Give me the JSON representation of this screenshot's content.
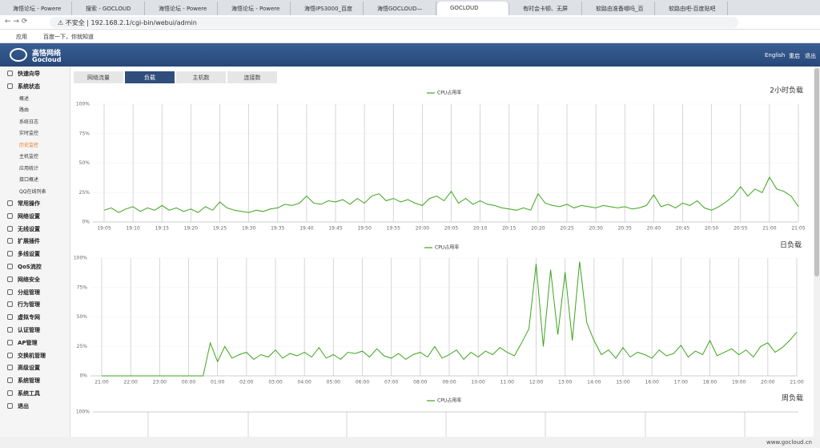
{
  "browser": {
    "tabs": [
      "海悟论坛 - Powere",
      "搜索 - GOCLOUD",
      "海悟论坛 - Powere",
      "海悟论坛 - Powere",
      "海悟IPS3000_百度",
      "海悟GOCLOUD—",
      "GOCLOUD",
      "有时会卡顿、无屏",
      "软路由准备哪吗_百",
      "软路由吧-百度贴吧"
    ],
    "active_tab": 6,
    "security": "不安全",
    "url": "192.168.2.1/cgi-bin/webui/admin",
    "bookmarks": [
      "应用",
      "百度一下，你就知道"
    ]
  },
  "header": {
    "logo": "高恪网络",
    "logo_en": "Gocloud",
    "links": [
      "English",
      "重启",
      "退出"
    ]
  },
  "sidebar": {
    "menu": [
      "快速向导",
      "系统状态",
      "常用操作",
      "网络设置",
      "无线设置",
      "扩展插件",
      "多线设置",
      "QoS流控",
      "网络安全",
      "分组管理",
      "行为管理",
      "虚拟专网",
      "认证管理",
      "AP管理",
      "交换机管理",
      "高级设置",
      "系统管理",
      "系统工具",
      "退出"
    ],
    "open": 1,
    "submenu": [
      "概述",
      "路由",
      "系统日志",
      "实时监控",
      "历史监控",
      "主机监控",
      "应用统计",
      "接口概述",
      "QQ在线列表"
    ],
    "active_sub": 4
  },
  "tabs": {
    "items": [
      "网络流量",
      "负载",
      "主机数",
      "连接数"
    ],
    "active": 1
  },
  "chart_data": [
    {
      "type": "line",
      "title": "2小时负载",
      "legend": "CPU占用率",
      "color": "#3ca51c",
      "grid": true,
      "ylim": [
        0,
        100
      ],
      "yticks": [
        {
          "value": 0,
          "label": "0%"
        },
        {
          "value": 25,
          "label": "25%"
        },
        {
          "value": 50,
          "label": "50%"
        },
        {
          "value": 75,
          "label": "75%"
        },
        {
          "value": 100,
          "label": "100%"
        }
      ],
      "categories": [
        "19:05",
        null,
        null,
        null,
        "19:10",
        null,
        null,
        null,
        "19:15",
        null,
        null,
        null,
        "19:20",
        null,
        null,
        null,
        "19:25",
        null,
        null,
        null,
        "19:30",
        null,
        null,
        null,
        "19:35",
        null,
        null,
        null,
        "19:40",
        null,
        null,
        null,
        "19:45",
        null,
        null,
        null,
        "19:50",
        null,
        null,
        null,
        "19:55",
        null,
        null,
        null,
        "20:00",
        null,
        null,
        null,
        "20:05",
        null,
        null,
        null,
        "20:10",
        null,
        null,
        null,
        "20:15",
        null,
        null,
        null,
        "20:20",
        null,
        null,
        null,
        "20:25",
        null,
        null,
        null,
        "20:30",
        null,
        null,
        null,
        "20:35",
        null,
        null,
        null,
        "20:40",
        null,
        null,
        null,
        "20:45",
        null,
        null,
        null,
        "20:50",
        null,
        null,
        null,
        "20:55",
        null,
        null,
        null,
        "21:00",
        null,
        null,
        null,
        "21:05"
      ],
      "series": [
        {
          "name": "CPU占用率",
          "values": [
            10,
            12,
            8,
            11,
            13,
            9,
            12,
            10,
            14,
            10,
            12,
            9,
            11,
            8,
            13,
            10,
            17,
            12,
            10,
            9,
            8,
            10,
            9,
            11,
            12,
            15,
            14,
            16,
            22,
            16,
            15,
            18,
            17,
            19,
            15,
            20,
            16,
            22,
            24,
            18,
            20,
            17,
            19,
            16,
            14,
            20,
            22,
            18,
            26,
            16,
            20,
            15,
            18,
            15,
            14,
            12,
            11,
            10,
            12,
            10,
            24,
            16,
            14,
            13,
            15,
            12,
            14,
            13,
            12,
            14,
            13,
            12,
            13,
            11,
            12,
            14,
            23,
            13,
            15,
            12,
            16,
            14,
            18,
            12,
            10,
            13,
            17,
            22,
            30,
            22,
            28,
            25,
            38,
            28,
            26,
            22,
            13
          ]
        }
      ]
    },
    {
      "type": "line",
      "title": "日负载",
      "legend": "CPU占用率",
      "color": "#3ca51c",
      "grid": true,
      "ylim": [
        0,
        100
      ],
      "yticks": [
        {
          "value": 0,
          "label": "0%"
        },
        {
          "value": 25,
          "label": "25%"
        },
        {
          "value": 50,
          "label": "50%"
        },
        {
          "value": 75,
          "label": "75%"
        },
        {
          "value": 100,
          "label": "100%"
        }
      ],
      "categories": [
        "21:00",
        null,
        null,
        null,
        "22:00",
        null,
        null,
        null,
        "23:00",
        null,
        null,
        null,
        "00:00",
        null,
        null,
        null,
        "01:00",
        null,
        null,
        null,
        "02:00",
        null,
        null,
        null,
        "03:00",
        null,
        null,
        null,
        "04:00",
        null,
        null,
        null,
        "05:00",
        null,
        null,
        null,
        "06:00",
        null,
        null,
        null,
        "07:00",
        null,
        null,
        null,
        "08:00",
        null,
        null,
        null,
        "09:00",
        null,
        null,
        null,
        "10:00",
        null,
        null,
        null,
        "11:00",
        null,
        null,
        null,
        "12:00",
        null,
        null,
        null,
        "13:00",
        null,
        null,
        null,
        "14:00",
        null,
        null,
        null,
        "15:00",
        null,
        null,
        null,
        "16:00",
        null,
        null,
        null,
        "17:00",
        null,
        null,
        null,
        "18:00",
        null,
        null,
        null,
        "19:00",
        null,
        null,
        null,
        "20:00",
        null,
        null,
        null,
        "21:00"
      ],
      "series": [
        {
          "name": "CPU占用率",
          "values": [
            0,
            0,
            0,
            0,
            0,
            0,
            0,
            0,
            0,
            0,
            0,
            0,
            0,
            0,
            0,
            28,
            12,
            25,
            15,
            18,
            20,
            14,
            18,
            16,
            22,
            15,
            19,
            17,
            20,
            16,
            24,
            15,
            18,
            14,
            20,
            19,
            21,
            16,
            23,
            17,
            15,
            19,
            14,
            18,
            20,
            16,
            25,
            15,
            18,
            22,
            14,
            20,
            16,
            21,
            18,
            24,
            20,
            17,
            28,
            40,
            95,
            25,
            90,
            35,
            88,
            30,
            97,
            45,
            30,
            18,
            22,
            15,
            24,
            16,
            20,
            18,
            15,
            22,
            17,
            19,
            26,
            16,
            21,
            18,
            30,
            17,
            20,
            23,
            18,
            22,
            16,
            25,
            28,
            20,
            24,
            30,
            37
          ]
        }
      ]
    },
    {
      "type": "line",
      "title": "周负载",
      "legend": "CPU占用率",
      "color": "#3ca51c",
      "grid": true,
      "ylim": [
        0,
        100
      ],
      "yticks": [
        {
          "value": 100,
          "label": "100%"
        }
      ]
    }
  ],
  "footer": "www.gocloud.cn"
}
